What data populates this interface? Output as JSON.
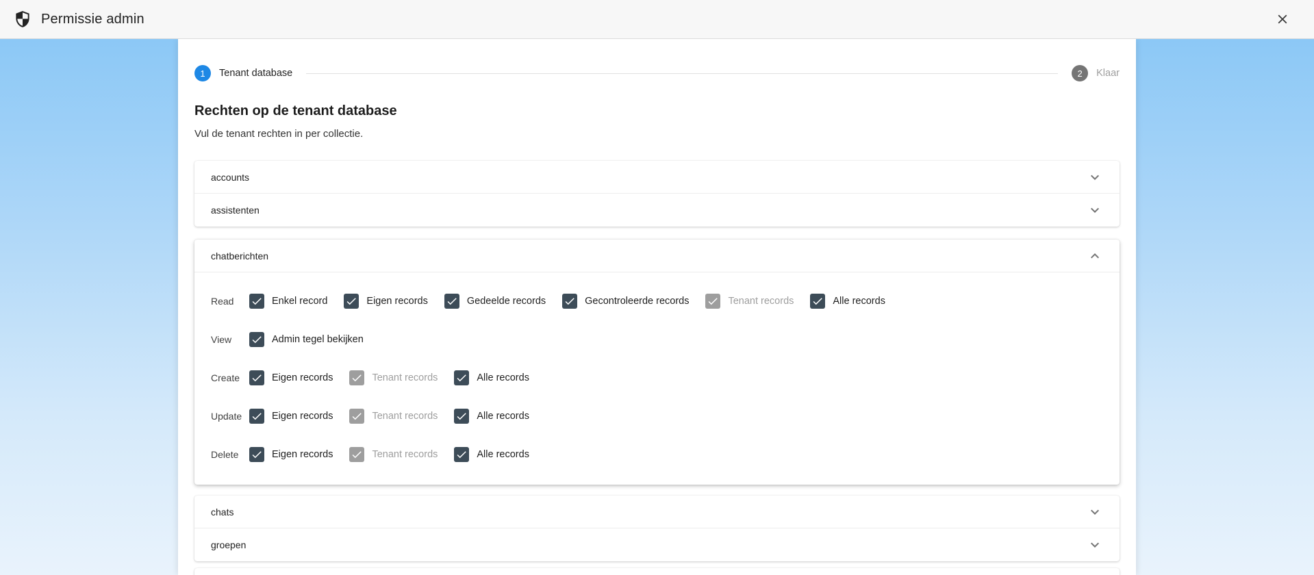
{
  "header": {
    "title": "Permissie admin",
    "app_icon": "shield-icon",
    "close_icon": "close-icon"
  },
  "stepper": {
    "steps": [
      {
        "number": "1",
        "label": "Tenant database",
        "state": "active"
      },
      {
        "number": "2",
        "label": "Klaar",
        "state": "inactive"
      }
    ]
  },
  "panel": {
    "title": "Rechten op de tenant database",
    "subtitle": "Vul de tenant rechten in per collectie.",
    "collections_before": [
      {
        "label": "accounts",
        "state": "collapsed",
        "icon": "chevron-down-icon"
      },
      {
        "label": "assistenten",
        "state": "collapsed",
        "icon": "chevron-down-icon"
      }
    ],
    "expanded_collection": {
      "label": "chatberichten",
      "icon": "chevron-up-icon",
      "permission_rows": [
        {
          "label": "Read",
          "options": [
            {
              "label": "Enkel record",
              "checked": true,
              "disabled": false
            },
            {
              "label": "Eigen records",
              "checked": true,
              "disabled": false
            },
            {
              "label": "Gedeelde records",
              "checked": true,
              "disabled": false
            },
            {
              "label": "Gecontroleerde records",
              "checked": true,
              "disabled": false
            },
            {
              "label": "Tenant records",
              "checked": true,
              "disabled": true
            },
            {
              "label": "Alle records",
              "checked": true,
              "disabled": false
            }
          ]
        },
        {
          "label": "View",
          "options": [
            {
              "label": "Admin tegel bekijken",
              "checked": true,
              "disabled": false
            }
          ]
        },
        {
          "label": "Create",
          "options": [
            {
              "label": "Eigen records",
              "checked": true,
              "disabled": false
            },
            {
              "label": "Tenant records",
              "checked": true,
              "disabled": true
            },
            {
              "label": "Alle records",
              "checked": true,
              "disabled": false
            }
          ]
        },
        {
          "label": "Update",
          "options": [
            {
              "label": "Eigen records",
              "checked": true,
              "disabled": false
            },
            {
              "label": "Tenant records",
              "checked": true,
              "disabled": true
            },
            {
              "label": "Alle records",
              "checked": true,
              "disabled": false
            }
          ]
        },
        {
          "label": "Delete",
          "options": [
            {
              "label": "Eigen records",
              "checked": true,
              "disabled": false
            },
            {
              "label": "Tenant records",
              "checked": true,
              "disabled": true
            },
            {
              "label": "Alle records",
              "checked": true,
              "disabled": false
            }
          ]
        }
      ]
    },
    "collections_after": [
      {
        "label": "chats",
        "state": "collapsed",
        "icon": "chevron-down-icon"
      },
      {
        "label": "groepen",
        "state": "collapsed",
        "icon": "chevron-down-icon"
      }
    ]
  },
  "colors": {
    "accent": "#1e88e5",
    "step_inactive": "#757575",
    "checkbox": "#3d4c58",
    "checkbox_disabled": "#9e9e9e",
    "background_top": "#8cc8f6",
    "background_bottom": "#e9f3fc"
  }
}
